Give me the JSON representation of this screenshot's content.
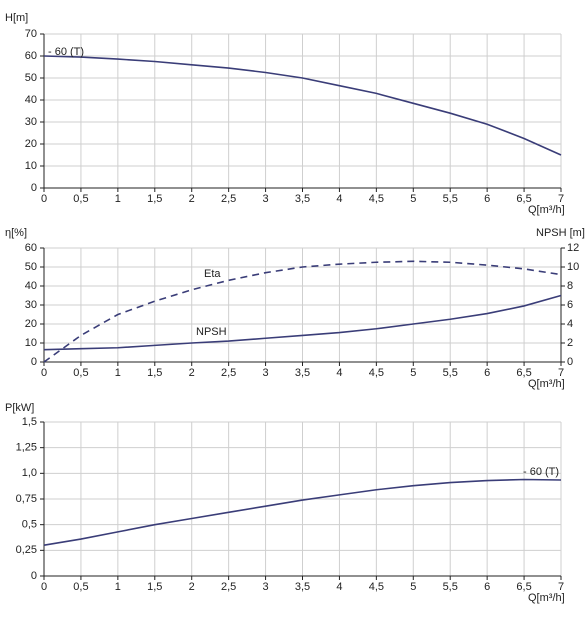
{
  "chart_data": [
    {
      "type": "line",
      "ylabel": "H[m]",
      "xlabel": "Q[m³/h]",
      "annotations": [
        "- 60 (T)"
      ],
      "x": [
        0,
        0.5,
        1,
        1.5,
        2,
        2.5,
        3,
        3.5,
        4,
        4.5,
        5,
        5.5,
        6,
        6.5,
        7
      ],
      "xlim": [
        0,
        7
      ],
      "xticks": [
        0,
        {
          "value": 0.5,
          "label": "0,5"
        },
        1,
        {
          "value": 1.5,
          "label": "1,5"
        },
        2,
        {
          "value": 2.5,
          "label": "2,5"
        },
        3,
        {
          "value": 3.5,
          "label": "3,5"
        },
        4,
        {
          "value": 4.5,
          "label": "4,5"
        },
        5,
        {
          "value": 5.5,
          "label": "5,5"
        },
        6,
        {
          "value": 6.5,
          "label": "6,5"
        },
        7
      ],
      "ylim": [
        0,
        70
      ],
      "yticks": [
        0,
        10,
        20,
        30,
        40,
        50,
        60,
        70
      ],
      "grid": true,
      "series": [
        {
          "color": "#3a3d78",
          "values": [
            60,
            59.5,
            58.6,
            57.5,
            56,
            54.5,
            52.5,
            50,
            46.5,
            43,
            38.5,
            34,
            29,
            22.5,
            15
          ]
        }
      ]
    },
    {
      "type": "line",
      "ylabel": "η[%]",
      "y2label": "NPSH [m]",
      "xlabel": "Q[m³/h]",
      "x": [
        0,
        0.5,
        1,
        1.5,
        2,
        2.5,
        3,
        3.5,
        4,
        4.5,
        5,
        5.5,
        6,
        6.5,
        7
      ],
      "xlim": [
        0,
        7
      ],
      "xticks": [
        0,
        {
          "value": 0.5,
          "label": "0,5"
        },
        1,
        {
          "value": 1.5,
          "label": "1,5"
        },
        2,
        {
          "value": 2.5,
          "label": "2,5"
        },
        3,
        {
          "value": 3.5,
          "label": "3,5"
        },
        4,
        {
          "value": 4.5,
          "label": "4,5"
        },
        5,
        {
          "value": 5.5,
          "label": "5,5"
        },
        6,
        {
          "value": 6.5,
          "label": "6,5"
        },
        7
      ],
      "ylim": [
        0,
        60
      ],
      "yticks": [
        0,
        10,
        20,
        30,
        40,
        50,
        60
      ],
      "y2lim": [
        0,
        12
      ],
      "y2ticks": [
        0,
        2,
        4,
        6,
        8,
        10,
        12
      ],
      "grid": true,
      "series": [
        {
          "name": "Eta",
          "color": "#3a3d78",
          "dash": true,
          "values": [
            0,
            14,
            25,
            32,
            38,
            43,
            47,
            50,
            51.5,
            52.5,
            53,
            52.5,
            51,
            49,
            46
          ]
        },
        {
          "name": "NPSH",
          "color": "#3a3d78",
          "axis": "y2",
          "values": [
            1.3,
            1.4,
            1.5,
            1.75,
            2.0,
            2.2,
            2.5,
            2.8,
            3.1,
            3.5,
            4.0,
            4.5,
            5.1,
            5.9,
            7.0
          ]
        }
      ]
    },
    {
      "type": "line",
      "ylabel": "P[kW]",
      "xlabel": "Q[m³/h]",
      "annotations": [
        "- 60 (T)"
      ],
      "x": [
        0,
        0.5,
        1,
        1.5,
        2,
        2.5,
        3,
        3.5,
        4,
        4.5,
        5,
        5.5,
        6,
        6.5,
        7
      ],
      "xlim": [
        0,
        7
      ],
      "xticks": [
        0,
        {
          "value": 0.5,
          "label": "0,5"
        },
        1,
        {
          "value": 1.5,
          "label": "1,5"
        },
        2,
        {
          "value": 2.5,
          "label": "2,5"
        },
        3,
        {
          "value": 3.5,
          "label": "3,5"
        },
        4,
        {
          "value": 4.5,
          "label": "4,5"
        },
        5,
        {
          "value": 5.5,
          "label": "5,5"
        },
        6,
        {
          "value": 6.5,
          "label": "6,5"
        },
        7
      ],
      "ylim": [
        0,
        1.5
      ],
      "yticks": [
        0,
        {
          "value": 0.25,
          "label": "0,25"
        },
        {
          "value": 0.5,
          "label": "0,5"
        },
        {
          "value": 0.75,
          "label": "0,75"
        },
        {
          "value": 1.0,
          "label": "1,0"
        },
        {
          "value": 1.25,
          "label": "1,25"
        },
        {
          "value": 1.5,
          "label": "1,5"
        }
      ],
      "grid": true,
      "series": [
        {
          "color": "#3a3d78",
          "values": [
            0.3,
            0.36,
            0.43,
            0.5,
            0.56,
            0.62,
            0.68,
            0.74,
            0.79,
            0.84,
            0.88,
            0.91,
            0.93,
            0.94,
            0.935
          ]
        }
      ]
    }
  ]
}
